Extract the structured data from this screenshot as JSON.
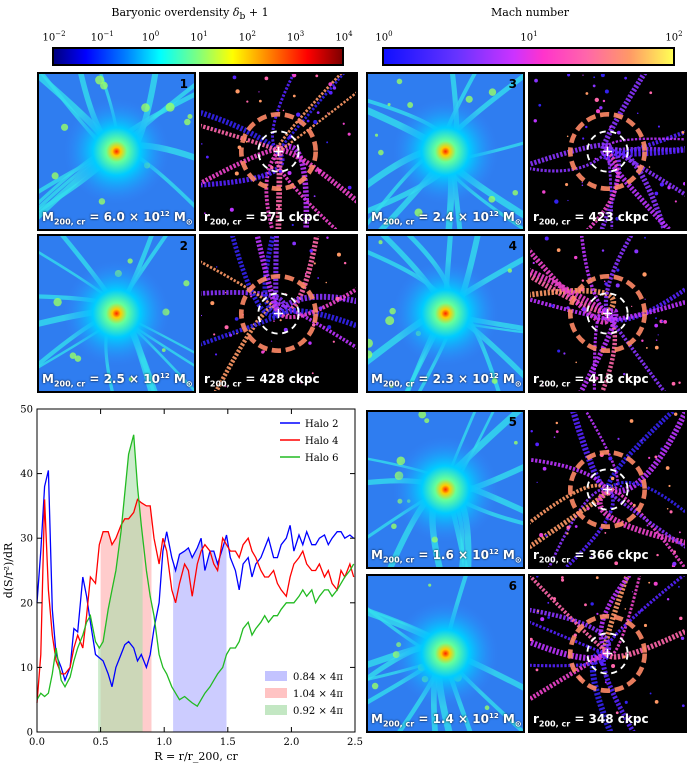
{
  "colorbars": {
    "left": {
      "title": "Baryonic overdensity δ_b + 1",
      "title_main": "Baryonic overdensity ",
      "title_sym": "δ",
      "title_sub": "b",
      "title_tail": " + 1",
      "ticks": [
        "10",
        "10",
        "10",
        "10",
        "10",
        "10",
        "10"
      ],
      "exponents": [
        "−2",
        "−1",
        "0",
        "1",
        "2",
        "3",
        "4"
      ],
      "colormap": "jet"
    },
    "right": {
      "title": "Mach number",
      "ticks": [
        "10",
        "10",
        "10"
      ],
      "exponents": [
        "0",
        "1",
        "2"
      ],
      "colormap": "spring-magenta"
    }
  },
  "halos": [
    {
      "id": "1",
      "mass_prefix": "M",
      "mass_sub": "200, cr",
      "mass_value": " = 6.0 × 10",
      "mass_exp": "12",
      "mass_unit": " M",
      "radius_prefix": "r",
      "radius_sub": "200, cr",
      "radius_value": " = 571 ckpc"
    },
    {
      "id": "2",
      "mass_prefix": "M",
      "mass_sub": "200, cr",
      "mass_value": " = 2.5 × 10",
      "mass_exp": "12",
      "mass_unit": " M",
      "radius_prefix": "r",
      "radius_sub": "200, cr",
      "radius_value": " = 428 ckpc"
    },
    {
      "id": "3",
      "mass_prefix": "M",
      "mass_sub": "200, cr",
      "mass_value": " = 2.4 × 10",
      "mass_exp": "12",
      "mass_unit": " M",
      "radius_prefix": "r",
      "radius_sub": "200, cr",
      "radius_value": " = 423 ckpc"
    },
    {
      "id": "4",
      "mass_prefix": "M",
      "mass_sub": "200, cr",
      "mass_value": " = 2.3 × 10",
      "mass_exp": "12",
      "mass_unit": " M",
      "radius_prefix": "r",
      "radius_sub": "200, cr",
      "radius_value": " = 418 ckpc"
    },
    {
      "id": "5",
      "mass_prefix": "M",
      "mass_sub": "200, cr",
      "mass_value": " = 1.6 × 10",
      "mass_exp": "12",
      "mass_unit": " M",
      "radius_prefix": "r",
      "radius_sub": "200, cr",
      "radius_value": " = 366 ckpc"
    },
    {
      "id": "6",
      "mass_prefix": "M",
      "mass_sub": "200, cr",
      "mass_value": " = 1.4 × 10",
      "mass_exp": "12",
      "mass_unit": " M",
      "radius_prefix": "r",
      "radius_sub": "200, cr",
      "radius_value": " = 348 ckpc"
    }
  ],
  "chart_data": {
    "type": "line",
    "xlabel": "R = r/r_200, cr",
    "ylabel": "d(S/r²)/dR",
    "xlim": [
      0.0,
      2.5
    ],
    "ylim": [
      0,
      50
    ],
    "xticks": [
      0.0,
      0.5,
      1.0,
      1.5,
      2.0,
      2.5
    ],
    "xtick_labels": [
      "0.0",
      "0.5",
      "1.0",
      "1.5",
      "2.0",
      "2.5"
    ],
    "yticks": [
      0,
      10,
      20,
      30,
      40,
      50
    ],
    "ytick_labels": [
      "0",
      "10",
      "20",
      "30",
      "40",
      "50"
    ],
    "grid": false,
    "legend_position": "top-right",
    "series": [
      {
        "name": "Halo 2",
        "color": "#0000ff",
        "x": [
          0.0,
          0.03,
          0.06,
          0.09,
          0.12,
          0.15,
          0.19,
          0.22,
          0.26,
          0.29,
          0.32,
          0.36,
          0.39,
          0.42,
          0.46,
          0.49,
          0.52,
          0.56,
          0.59,
          0.62,
          0.66,
          0.69,
          0.72,
          0.76,
          0.79,
          0.82,
          0.86,
          0.89,
          0.92,
          0.96,
          0.99,
          1.02,
          1.06,
          1.09,
          1.12,
          1.16,
          1.19,
          1.22,
          1.26,
          1.29,
          1.32,
          1.36,
          1.39,
          1.42,
          1.46,
          1.49,
          1.52,
          1.56,
          1.59,
          1.62,
          1.66,
          1.69,
          1.72,
          1.76,
          1.79,
          1.82,
          1.86,
          1.89,
          1.92,
          1.96,
          1.99,
          2.02,
          2.06,
          2.09,
          2.12,
          2.16,
          2.19,
          2.22,
          2.26,
          2.29,
          2.32,
          2.36,
          2.39,
          2.42,
          2.46,
          2.49
        ],
        "y": [
          20,
          28,
          38,
          40.5,
          19,
          12,
          10,
          8,
          10,
          16,
          15.5,
          24,
          21,
          17,
          12,
          11.5,
          11,
          9,
          7,
          10,
          12,
          13.5,
          14,
          13,
          11,
          12,
          10,
          12,
          16,
          20,
          28,
          31,
          27,
          25,
          27.5,
          28,
          28.5,
          27,
          28.5,
          30,
          25,
          28,
          28,
          26,
          28.5,
          30.5,
          27,
          25,
          22,
          26,
          27,
          24,
          26,
          27,
          28.5,
          30,
          27,
          27,
          29,
          30,
          32,
          28,
          30.5,
          29,
          31,
          29,
          29,
          30,
          30.5,
          29,
          30,
          31,
          31,
          30,
          30.5,
          30
        ]
      },
      {
        "name": "Halo 4",
        "color": "#ff0000",
        "x": [
          0.0,
          0.03,
          0.06,
          0.09,
          0.12,
          0.15,
          0.19,
          0.22,
          0.26,
          0.29,
          0.32,
          0.36,
          0.39,
          0.42,
          0.46,
          0.49,
          0.52,
          0.56,
          0.59,
          0.62,
          0.66,
          0.69,
          0.72,
          0.76,
          0.79,
          0.82,
          0.86,
          0.89,
          0.92,
          0.96,
          0.99,
          1.02,
          1.06,
          1.09,
          1.12,
          1.16,
          1.19,
          1.22,
          1.26,
          1.29,
          1.32,
          1.36,
          1.39,
          1.42,
          1.46,
          1.49,
          1.52,
          1.56,
          1.59,
          1.62,
          1.66,
          1.69,
          1.72,
          1.76,
          1.79,
          1.82,
          1.86,
          1.89,
          1.92,
          1.96,
          1.99,
          2.02,
          2.06,
          2.09,
          2.12,
          2.16,
          2.19,
          2.22,
          2.26,
          2.29,
          2.32,
          2.36,
          2.39,
          2.42,
          2.46,
          2.49
        ],
        "y": [
          4.5,
          12,
          36,
          22,
          15,
          11,
          9,
          9,
          10,
          13,
          15,
          13,
          18,
          24,
          23,
          29,
          31,
          31,
          29,
          30,
          32,
          33,
          33,
          34,
          36,
          35.5,
          35,
          35,
          30,
          26,
          30,
          28,
          22,
          20,
          23,
          26,
          25,
          21,
          26,
          28,
          29,
          28,
          26,
          25,
          30,
          29,
          28,
          28,
          27,
          29,
          30,
          28,
          27,
          25,
          24,
          24,
          25,
          23,
          22,
          21,
          24,
          26,
          27,
          28,
          26,
          25,
          25,
          26,
          24,
          25,
          23,
          22,
          25,
          24,
          26,
          24
        ]
      },
      {
        "name": "Halo 6",
        "color": "#22bb22",
        "x": [
          0.0,
          0.03,
          0.06,
          0.09,
          0.12,
          0.15,
          0.19,
          0.22,
          0.26,
          0.29,
          0.32,
          0.36,
          0.39,
          0.42,
          0.46,
          0.49,
          0.52,
          0.56,
          0.59,
          0.62,
          0.66,
          0.69,
          0.72,
          0.76,
          0.79,
          0.82,
          0.86,
          0.89,
          0.92,
          0.96,
          0.99,
          1.02,
          1.06,
          1.09,
          1.12,
          1.16,
          1.19,
          1.22,
          1.26,
          1.29,
          1.32,
          1.36,
          1.39,
          1.42,
          1.46,
          1.49,
          1.52,
          1.56,
          1.59,
          1.62,
          1.66,
          1.69,
          1.72,
          1.76,
          1.79,
          1.82,
          1.86,
          1.89,
          1.92,
          1.96,
          1.99,
          2.02,
          2.06,
          2.09,
          2.12,
          2.16,
          2.19,
          2.22,
          2.26,
          2.29,
          2.32,
          2.36,
          2.39,
          2.42,
          2.46,
          2.49
        ],
        "y": [
          5,
          6,
          5.5,
          6,
          9,
          13,
          8,
          7,
          8.5,
          11,
          13,
          15,
          17,
          18,
          14,
          13,
          14,
          19,
          22,
          25,
          31,
          37,
          43,
          46,
          38,
          32,
          25,
          21,
          18,
          12,
          10,
          9,
          7,
          6,
          5,
          5.5,
          5,
          4.5,
          4,
          5,
          6,
          7,
          8,
          9,
          10,
          12,
          13,
          13,
          14,
          16,
          17,
          15,
          16,
          17,
          18,
          17,
          18,
          18,
          19,
          20,
          20,
          20,
          21,
          22,
          21,
          22,
          20,
          21,
          22,
          22,
          21,
          22,
          23,
          24,
          25,
          26
        ]
      }
    ],
    "shaded_bands": [
      {
        "label": "0.84 × 4π",
        "color": "#aaaaff",
        "x": [
          1.07,
          1.49
        ],
        "series": "Halo 2"
      },
      {
        "label": "1.04 × 4π",
        "color": "#ffaaaa",
        "x": [
          0.5,
          0.9
        ],
        "series": "Halo 4"
      },
      {
        "label": "0.92 × 4π",
        "color": "#aaddaa",
        "x": [
          0.48,
          0.83
        ],
        "series": "Halo 6"
      }
    ]
  }
}
